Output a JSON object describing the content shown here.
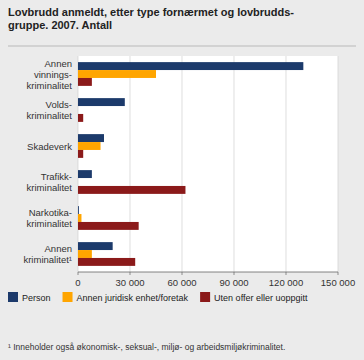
{
  "chart_data": {
    "type": "bar",
    "orientation": "horizontal",
    "title": "Lovbrudd anmeldt, etter type fornærmet og lovbrudds-\ngruppe. 2007. Antall",
    "categories": [
      "Annen\nvinnings-\nkriminalitet",
      "Volds-\nkriminalitet",
      "Skadeverk",
      "Trafikk-\nkriminalitet",
      "Narkotika-\nkriminalitet",
      "Annen\nkriminalitet¹"
    ],
    "series": [
      {
        "name": "Person",
        "color": "#1C3A6B",
        "values": [
          130000,
          27000,
          15000,
          8000,
          500,
          20000
        ]
      },
      {
        "name": "Annen juridisk enhet/foretak",
        "color": "#FFA500",
        "values": [
          45000,
          0,
          13000,
          0,
          2000,
          8000
        ]
      },
      {
        "name": "Uten offer eller uoppgitt",
        "color": "#8B1A1A",
        "values": [
          8000,
          3000,
          3000,
          62000,
          35000,
          33000
        ]
      }
    ],
    "xlim": [
      0,
      150000
    ],
    "xticks": [
      0,
      {
        "value": 30000,
        "label": "30 000"
      },
      {
        "value": 60000,
        "label": "60 000"
      },
      {
        "value": 90000,
        "label": "90 000"
      },
      {
        "value": 120000,
        "label": "120 000"
      },
      {
        "value": 150000,
        "label": "150 000"
      }
    ],
    "grid": true,
    "legend": "bottom",
    "footnote": "¹ Inneholder også økonomisk-, seksual-, miljø- og arbeidsmiljøkriminalitet."
  }
}
